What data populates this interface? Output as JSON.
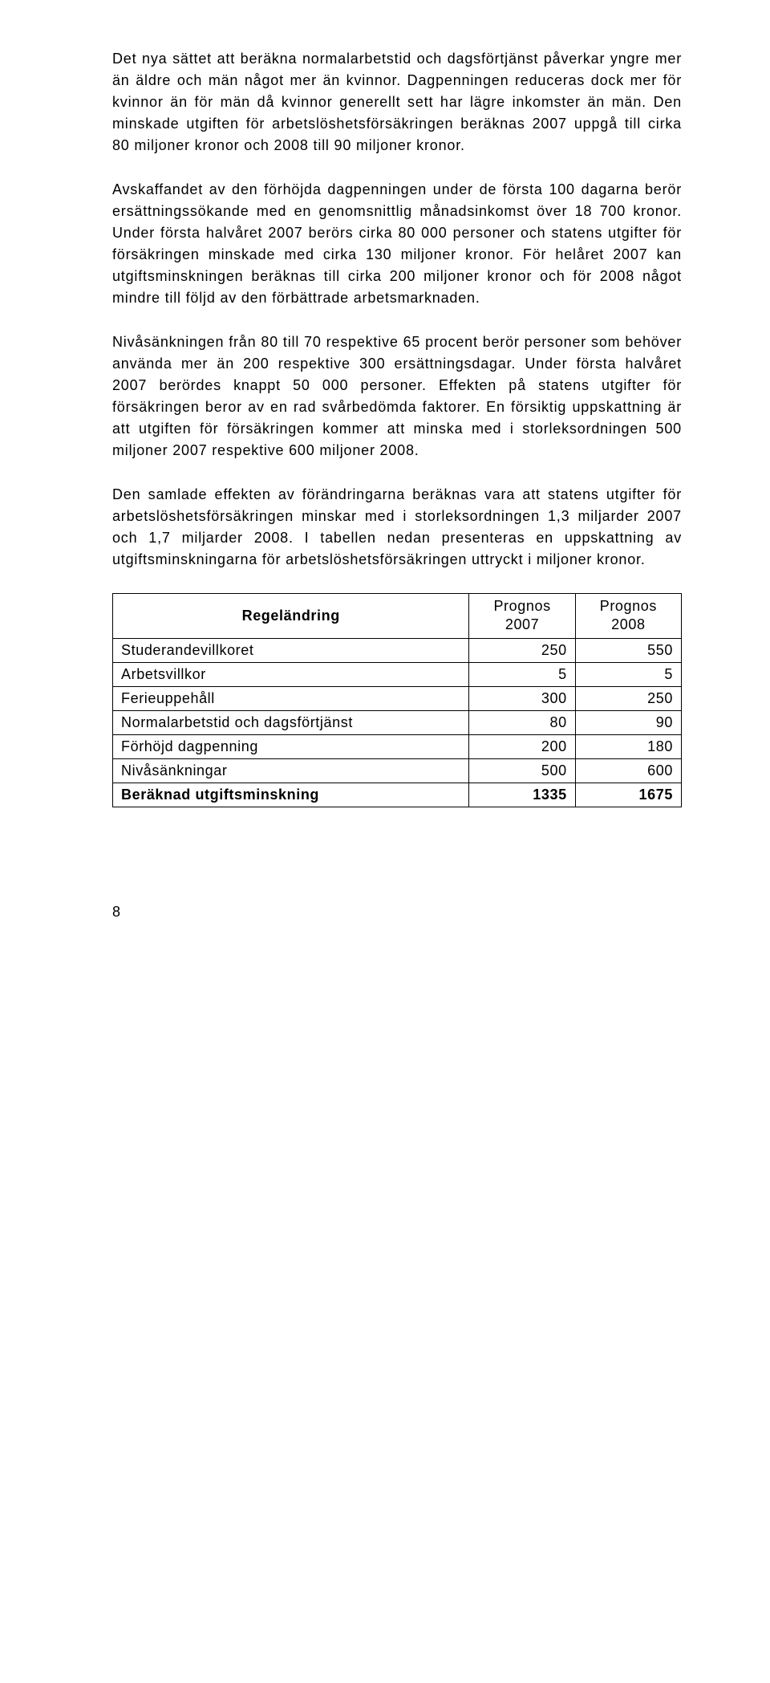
{
  "paragraphs": {
    "p1": "Det nya sättet att beräkna normalarbetstid och dagsförtjänst påverkar yngre mer än äldre och män något mer än kvinnor. Dagpenningen reduceras dock mer för kvinnor än för män då kvinnor generellt sett har lägre inkomster än män. Den minskade utgiften för arbetslöshetsförsäkringen beräknas 2007 uppgå till cirka 80 miljoner kronor och 2008 till 90 miljoner kronor.",
    "p2": "Avskaffandet av den förhöjda dagpenningen under de första 100 dagarna berör ersättningssökande med en genomsnittlig månadsinkomst över 18 700 kronor. Under första halvåret 2007 berörs cirka 80 000 personer och statens utgifter för försäkringen minskade med cirka 130 miljoner kronor. För helåret 2007 kan utgiftsminskningen beräknas till cirka 200 miljoner kronor och för 2008 något mindre till följd av den förbättrade arbetsmarknaden.",
    "p3": "Nivåsänkningen från 80 till 70 respektive 65 procent berör personer som behöver använda mer än 200 respektive 300 ersättningsdagar. Under första halvåret 2007 berördes knappt 50 000 personer. Effekten på statens utgifter för försäkringen beror av en rad svårbedömda faktorer. En försiktig uppskattning är att utgiften för försäkringen kommer att minska med i storleksordningen 500 miljoner 2007 respektive 600 miljoner 2008.",
    "p4": "Den samlade effekten av förändringarna beräknas vara att statens utgifter för arbetslöshetsförsäkringen minskar med i storleksordningen 1,3 miljarder 2007 och 1,7 miljarder 2008. I tabellen nedan presenteras en uppskattning av utgiftsminskningarna för arbetslös­hetsförsäkringen uttryckt i miljoner kronor."
  },
  "table": {
    "header": {
      "col1": "Regeländring",
      "col2_line1": "Prognos",
      "col2_line2": "2007",
      "col3_line1": "Prognos",
      "col3_line2": "2008"
    },
    "rows": [
      {
        "label": "Studerandevillkoret",
        "v2007": "250",
        "v2008": "550"
      },
      {
        "label": "Arbetsvillkor",
        "v2007": "5",
        "v2008": "5"
      },
      {
        "label": "Ferieuppehåll",
        "v2007": "300",
        "v2008": "250"
      },
      {
        "label": "Normalarbetstid och dagsförtjänst",
        "v2007": "80",
        "v2008": "90"
      },
      {
        "label": "Förhöjd dagpenning",
        "v2007": "200",
        "v2008": "180"
      },
      {
        "label": "Nivåsänkningar",
        "v2007": "500",
        "v2008": "600"
      }
    ],
    "total": {
      "label": "Beräknad utgiftsminskning",
      "v2007": "1335",
      "v2008": "1675"
    }
  },
  "page_number": "8"
}
